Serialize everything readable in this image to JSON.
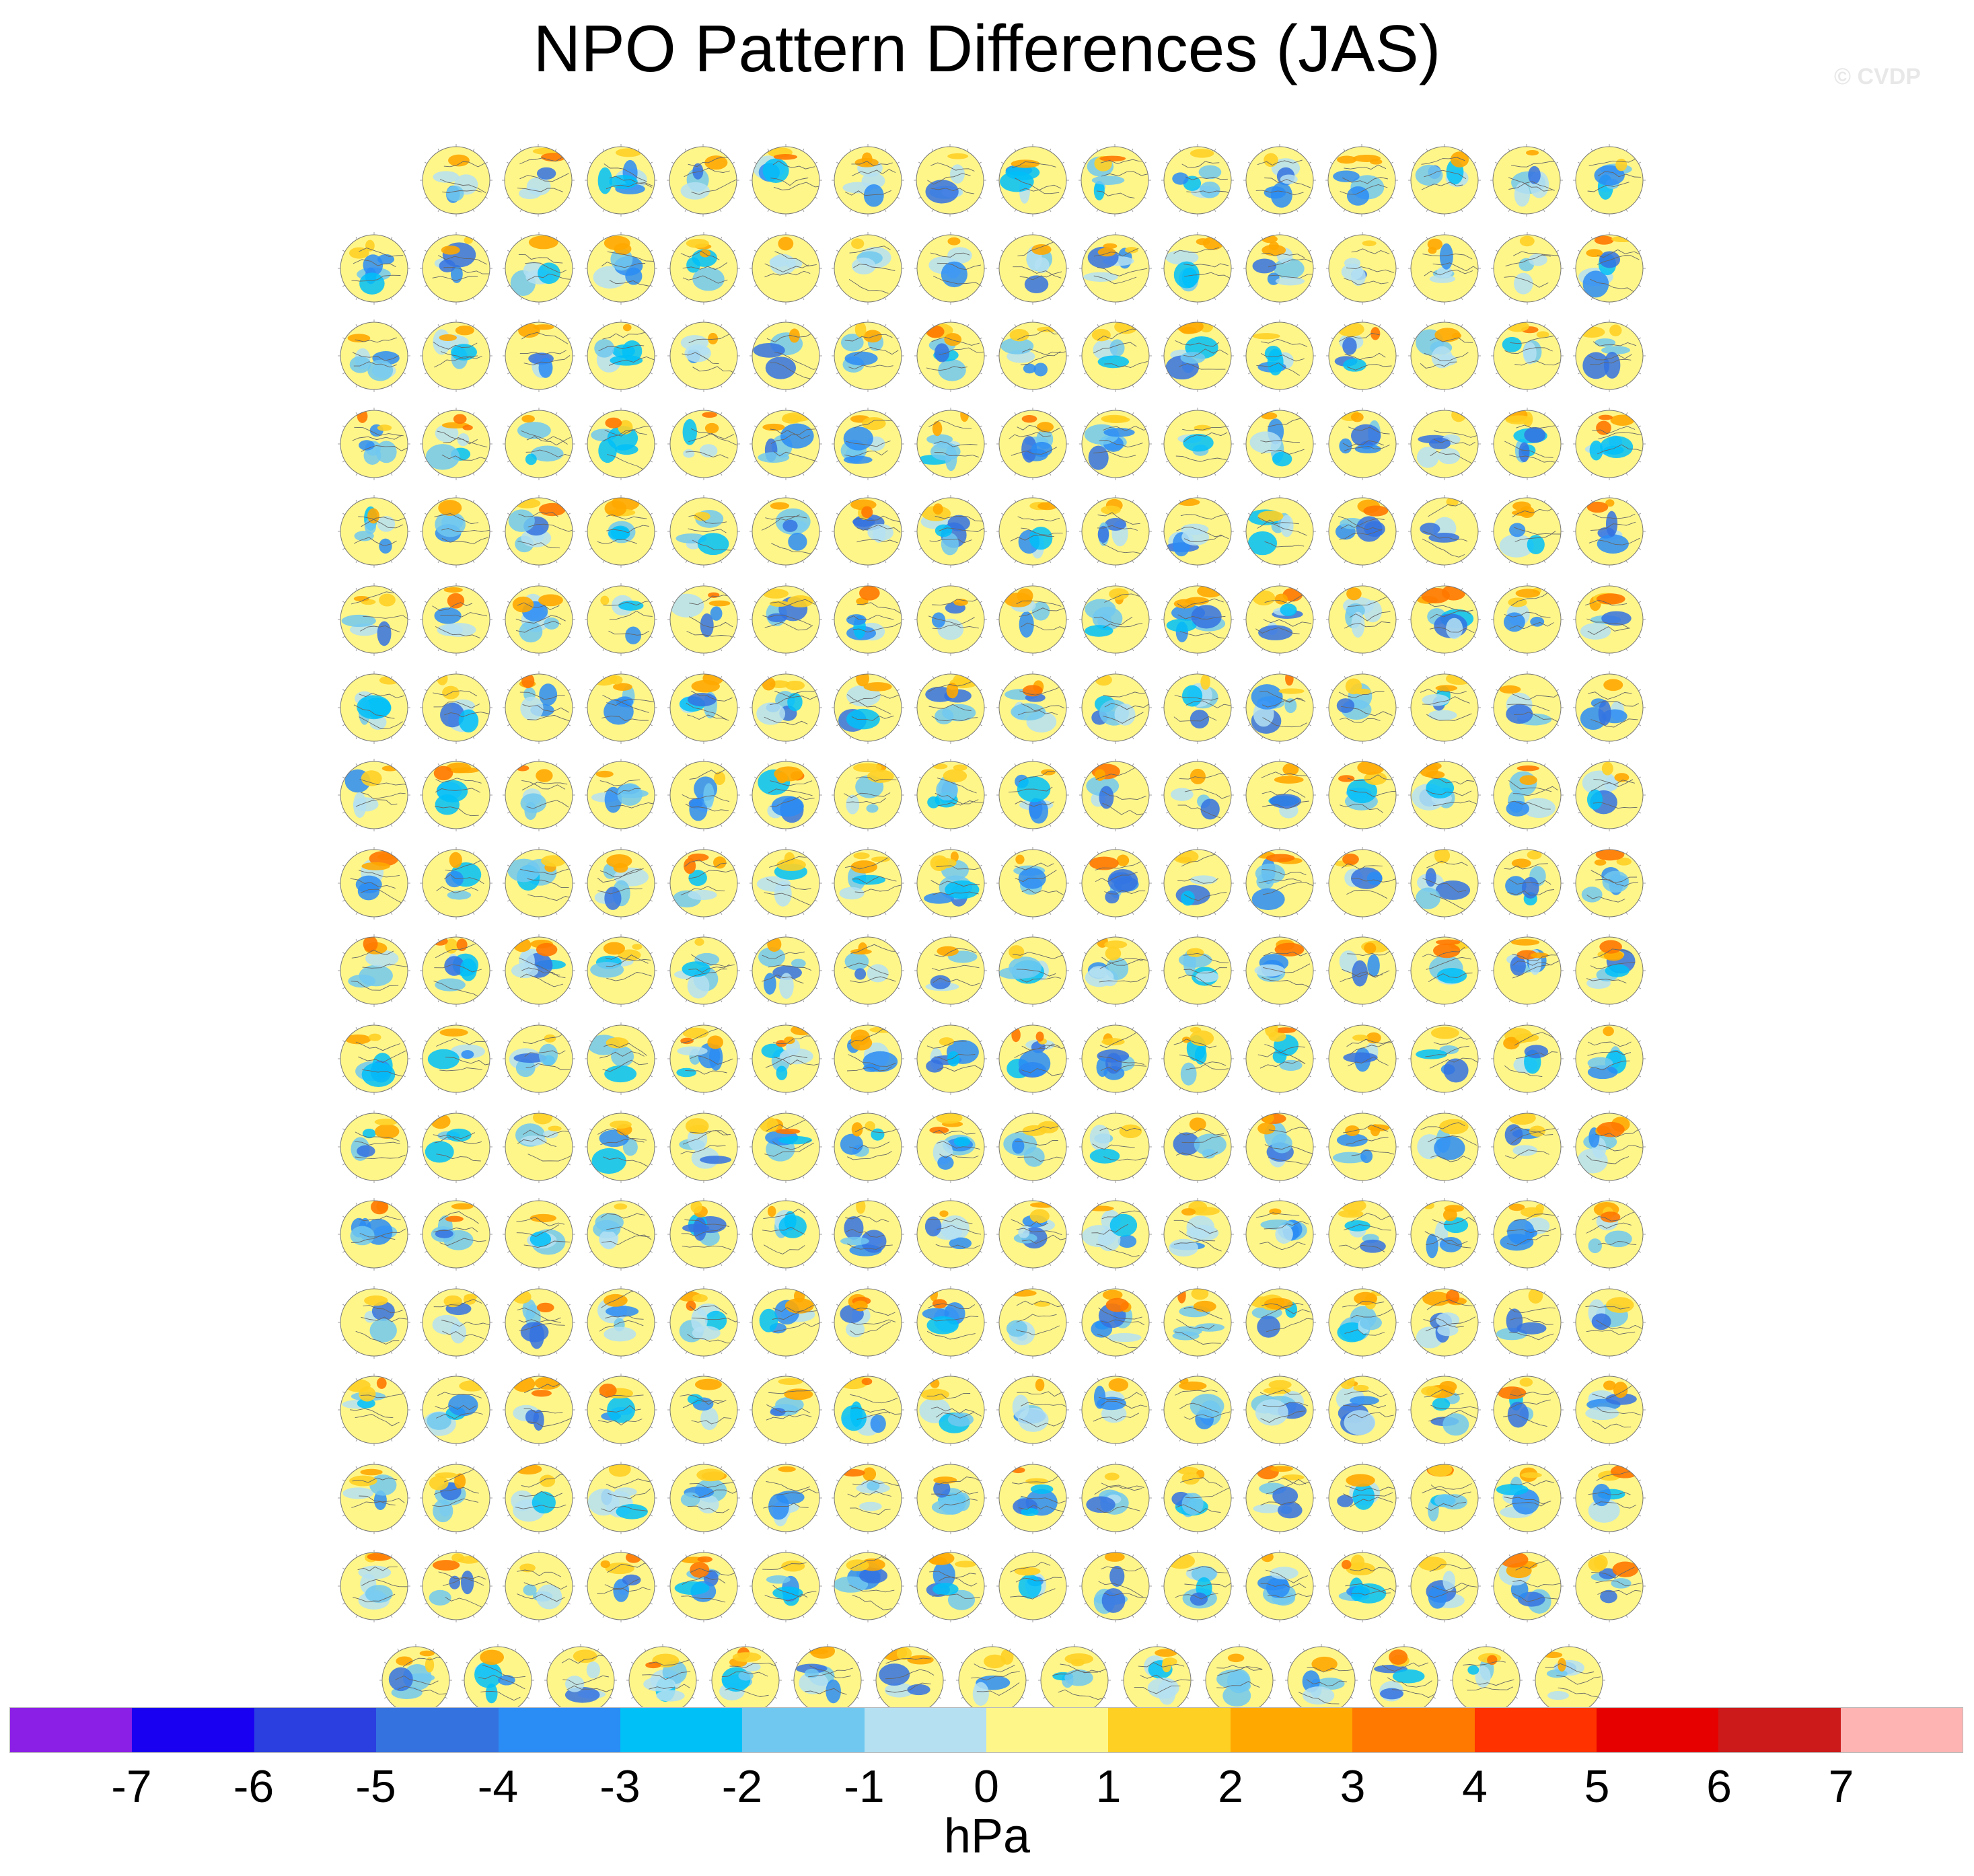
{
  "title": "NPO Pattern Differences (JAS)",
  "watermark": "© CVDP",
  "chart_data": {
    "type": "heatmap",
    "title": "NPO Pattern Differences (JAS)",
    "panel_rows": [
      15,
      16,
      16,
      16,
      16,
      16,
      16,
      16,
      16,
      16,
      16,
      16,
      16,
      16,
      16,
      16,
      16,
      15
    ],
    "panel_titles": "",
    "colorbar": {
      "label": "hPa",
      "tick_labels": [
        "-7",
        "-6",
        "-5",
        "-4",
        "-3",
        "-2",
        "-1",
        "0",
        "1",
        "2",
        "3",
        "4",
        "5",
        "6",
        "7"
      ],
      "colors": [
        "#8b1fe6",
        "#1a00f0",
        "#2b3fe0",
        "#3472e0",
        "#2a8cf5",
        "#00c0f8",
        "#70c8f0",
        "#b4e0f2",
        "#fff68a",
        "#ffd024",
        "#ffa800",
        "#ff7800",
        "#ff3200",
        "#e60000",
        "#cc1a1a",
        "#ffb4b4"
      ]
    }
  }
}
